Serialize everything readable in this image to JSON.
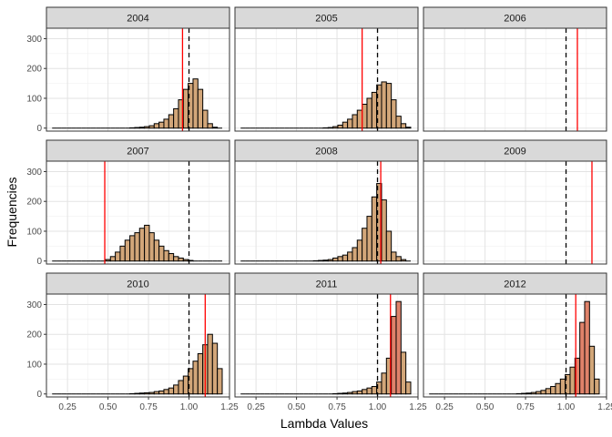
{
  "chart_data": {
    "type": "bar",
    "facet_layout": "3x3",
    "xlabel": "Lambda Values",
    "ylabel": "Frequencies",
    "xlim": [
      0.12,
      1.25
    ],
    "ylim": [
      0,
      320
    ],
    "xticks": [
      0.25,
      0.5,
      0.75,
      1.0,
      1.25
    ],
    "xtick_labels": [
      "0.25",
      "0.50",
      "0.75",
      "1.00",
      "1.25"
    ],
    "yticks": [
      0,
      100,
      200,
      300
    ],
    "ytick_labels": [
      "0",
      "100",
      "200",
      "300"
    ],
    "bin_width": 0.03,
    "bin_starts": [
      0.155,
      0.185,
      0.215,
      0.245,
      0.275,
      0.305,
      0.335,
      0.365,
      0.395,
      0.425,
      0.455,
      0.485,
      0.515,
      0.545,
      0.575,
      0.605,
      0.635,
      0.665,
      0.695,
      0.725,
      0.755,
      0.785,
      0.815,
      0.845,
      0.875,
      0.905,
      0.935,
      0.965,
      0.995,
      1.025,
      1.055,
      1.085,
      1.115,
      1.145,
      1.175
    ],
    "reference_line": {
      "x": 1.0,
      "style": "dashed",
      "color": "#000000"
    },
    "estimate_line_color": "#ff0000",
    "bar_fill": "#d2a679",
    "highlight_fill": "#e0826a",
    "grid": true,
    "panels": [
      {
        "label": "2004",
        "estimate": 0.96,
        "counts": [
          0,
          0,
          0,
          0,
          0,
          0,
          0,
          0,
          0,
          0,
          0,
          0,
          0,
          0,
          0,
          0,
          1,
          2,
          3,
          5,
          8,
          15,
          20,
          30,
          45,
          65,
          95,
          130,
          150,
          165,
          130,
          60,
          15,
          3,
          0
        ]
      },
      {
        "label": "2005",
        "estimate": 0.905,
        "counts": [
          0,
          0,
          0,
          0,
          0,
          0,
          0,
          0,
          0,
          0,
          0,
          0,
          0,
          0,
          0,
          0,
          0,
          1,
          2,
          5,
          10,
          20,
          30,
          45,
          60,
          80,
          100,
          120,
          145,
          155,
          150,
          95,
          40,
          15,
          3
        ]
      },
      {
        "label": "2006",
        "estimate": 1.07,
        "counts": []
      },
      {
        "label": "2007",
        "estimate": 0.48,
        "counts": [
          0,
          0,
          0,
          0,
          0,
          0,
          0,
          0,
          0,
          0,
          0,
          5,
          15,
          30,
          50,
          70,
          85,
          95,
          110,
          120,
          95,
          70,
          50,
          35,
          25,
          15,
          10,
          5,
          2,
          0,
          0,
          0,
          0,
          0,
          0
        ]
      },
      {
        "label": "2008",
        "estimate": 1.02,
        "counts": [
          0,
          0,
          0,
          0,
          0,
          0,
          0,
          0,
          0,
          0,
          0,
          0,
          0,
          0,
          0,
          1,
          2,
          3,
          5,
          10,
          15,
          20,
          30,
          45,
          70,
          110,
          150,
          215,
          260,
          205,
          100,
          30,
          15,
          5,
          0
        ]
      },
      {
        "label": "2009",
        "estimate": 1.16,
        "counts": []
      },
      {
        "label": "2010",
        "estimate": 1.1,
        "counts": [
          0,
          0,
          0,
          0,
          0,
          0,
          0,
          0,
          0,
          0,
          0,
          0,
          0,
          0,
          0,
          0,
          1,
          2,
          3,
          4,
          5,
          8,
          10,
          15,
          20,
          30,
          45,
          60,
          85,
          110,
          135,
          165,
          200,
          170,
          85
        ]
      },
      {
        "label": "2011",
        "estimate": 1.08,
        "counts": [
          0,
          0,
          0,
          0,
          0,
          0,
          0,
          0,
          0,
          0,
          0,
          0,
          0,
          0,
          0,
          0,
          0,
          0,
          0,
          1,
          2,
          3,
          5,
          8,
          10,
          15,
          20,
          25,
          40,
          70,
          120,
          260,
          310,
          140,
          40
        ],
        "highlight_bins": [
          31,
          32
        ]
      },
      {
        "label": "2012",
        "estimate": 1.06,
        "counts": [
          0,
          0,
          0,
          0,
          0,
          0,
          0,
          0,
          0,
          0,
          0,
          0,
          0,
          0,
          0,
          0,
          0,
          0,
          1,
          2,
          3,
          5,
          8,
          12,
          18,
          25,
          35,
          50,
          65,
          90,
          120,
          240,
          310,
          160,
          50
        ],
        "highlight_bins": [
          30,
          31,
          32
        ]
      }
    ]
  }
}
